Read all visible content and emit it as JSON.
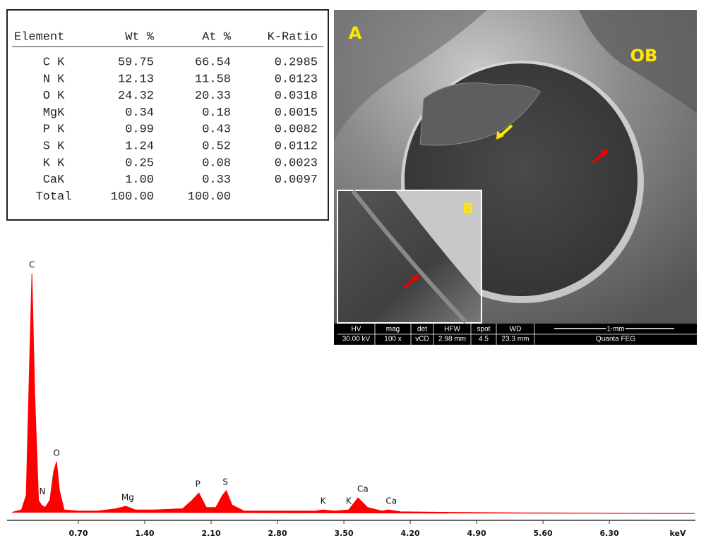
{
  "table": {
    "header": [
      "Element",
      "Wt %",
      "At %",
      "K-Ratio"
    ],
    "rows": [
      [
        "C K",
        "59.75",
        "66.54",
        "0.2985"
      ],
      [
        "N K",
        "12.13",
        "11.58",
        "0.0123"
      ],
      [
        "O K",
        "24.32",
        "20.33",
        "0.0318"
      ],
      [
        "MgK",
        "0.34",
        "0.18",
        "0.0015"
      ],
      [
        "P K",
        "0.99",
        "0.43",
        "0.0082"
      ],
      [
        "S K",
        "1.24",
        "0.52",
        "0.0112"
      ],
      [
        "K K",
        "0.25",
        "0.08",
        "0.0023"
      ],
      [
        "CaK",
        "1.00",
        "0.33",
        "0.0097"
      ],
      [
        "Total",
        "100.00",
        "100.00"
      ]
    ]
  },
  "sem_image": {
    "panel_label": "A",
    "region_label": "OB",
    "inset_label": "B",
    "info_bar": {
      "columns": [
        {
          "label": "HV",
          "value": "30.00 kV"
        },
        {
          "label": "mag",
          "value": "100 x"
        },
        {
          "label": "det",
          "value": "vCD"
        },
        {
          "label": "HFW",
          "value": "2.98 mm"
        },
        {
          "label": "spot",
          "value": "4.5"
        },
        {
          "label": "WD",
          "value": "23.3 mm"
        }
      ],
      "scale_bar": "1 mm",
      "instrument": "Quanta FEG"
    }
  },
  "chart_data": {
    "type": "area",
    "color": "#ff0000",
    "xlabel": "keV",
    "x": [
      0,
      0.1,
      0.15,
      0.18,
      0.21,
      0.24,
      0.28,
      0.31,
      0.35,
      0.4,
      0.44,
      0.47,
      0.5,
      0.55,
      0.7,
      0.9,
      1.1,
      1.2,
      1.3,
      1.5,
      1.8,
      1.9,
      1.97,
      2.05,
      2.15,
      2.22,
      2.26,
      2.32,
      2.45,
      2.8,
      3.2,
      3.28,
      3.4,
      3.55,
      3.65,
      3.75,
      3.9,
      3.97,
      4.1,
      4.6,
      5.2,
      6,
      7.2
    ],
    "values": [
      1,
      2,
      8,
      55,
      100,
      50,
      6,
      4,
      3,
      6,
      18,
      22,
      10,
      2,
      1.5,
      1.5,
      2.5,
      3.5,
      2,
      2,
      2.5,
      6,
      9,
      3,
      3,
      8,
      10,
      4,
      1.5,
      1.5,
      1.5,
      2,
      1.5,
      2,
      7,
      3,
      1.5,
      2,
      1.2,
      1,
      0.8,
      0.6,
      0.5
    ],
    "xlim": [
      0,
      7.2
    ],
    "ylim": [
      0,
      100
    ],
    "xticks": [
      {
        "value": 0.7,
        "label": "0.70"
      },
      {
        "value": 1.4,
        "label": "1.40"
      },
      {
        "value": 2.1,
        "label": "2.10"
      },
      {
        "value": 2.8,
        "label": "2.80"
      },
      {
        "value": 3.5,
        "label": "3.50"
      },
      {
        "value": 4.2,
        "label": "4.20"
      },
      {
        "value": 4.9,
        "label": "4.90"
      },
      {
        "value": 5.6,
        "label": "5.60"
      },
      {
        "value": 6.3,
        "label": "6.30"
      }
    ],
    "peak_labels": [
      {
        "text": "C",
        "x": 0.21
      },
      {
        "text": "N",
        "x": 0.32
      },
      {
        "text": "O",
        "x": 0.47
      },
      {
        "text": "Mg",
        "x": 1.22
      },
      {
        "text": "P",
        "x": 1.96
      },
      {
        "text": "S",
        "x": 2.25
      },
      {
        "text": "K",
        "x": 3.28
      },
      {
        "text": "K",
        "x": 3.55
      },
      {
        "text": "Ca",
        "x": 3.7
      },
      {
        "text": "Ca",
        "x": 4.0
      }
    ]
  }
}
